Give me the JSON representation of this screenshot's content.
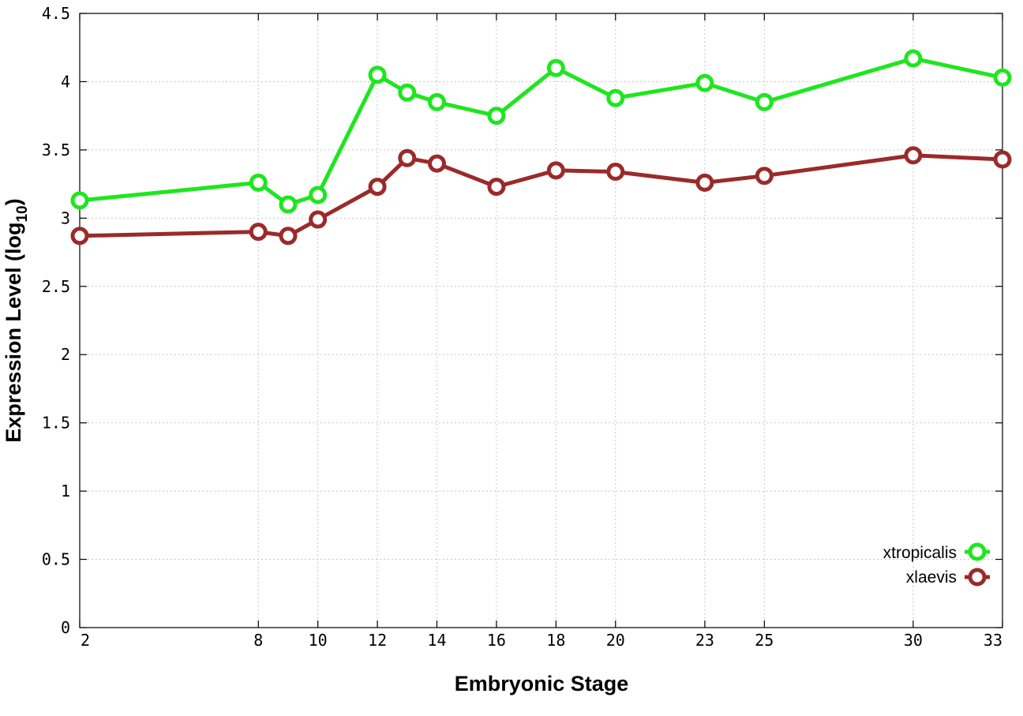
{
  "chart_data": {
    "type": "line",
    "title": "",
    "xlabel": "Embryonic Stage",
    "ylabel_main": "Expression Level (log",
    "ylabel_sub": "10",
    "ylabel_close": ")",
    "x": [
      2,
      8,
      9,
      10,
      12,
      13,
      14,
      16,
      18,
      20,
      23,
      25,
      30,
      33
    ],
    "x_ticks": [
      2,
      8,
      10,
      12,
      14,
      16,
      18,
      20,
      23,
      25,
      30,
      33
    ],
    "xlim": [
      2,
      33
    ],
    "ylim": [
      0,
      4.5
    ],
    "y_ticks": [
      "0",
      "0.5",
      "1",
      "1.5",
      "2",
      "2.5",
      "3",
      "3.5",
      "4",
      "4.5"
    ],
    "grid": true,
    "legend_position": "bottom-right",
    "series": [
      {
        "name": "xtropicalis",
        "color": "#1ee61e",
        "values": [
          3.13,
          3.26,
          3.1,
          3.17,
          4.05,
          3.92,
          3.85,
          3.75,
          4.1,
          3.88,
          3.99,
          3.85,
          4.17,
          4.03
        ]
      },
      {
        "name": "xlaevis",
        "color": "#9b2a2a",
        "values": [
          2.87,
          2.9,
          2.87,
          2.99,
          3.23,
          3.44,
          3.4,
          3.23,
          3.35,
          3.34,
          3.26,
          3.31,
          3.46,
          3.43
        ]
      }
    ]
  }
}
